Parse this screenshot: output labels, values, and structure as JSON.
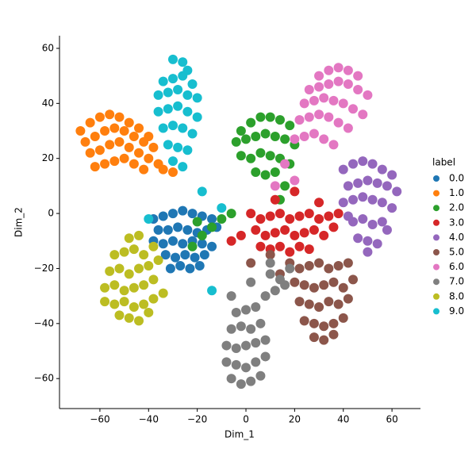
{
  "chart_data": {
    "type": "scatter",
    "x_label": "Dim_1",
    "y_label": "Dim_2",
    "legend_title": "label",
    "legend": "right",
    "xlim": [
      -76.6,
      71.7
    ],
    "ylim": [
      -70.9,
      64.6
    ],
    "xticks": [
      {
        "value": -60,
        "label": "−60"
      },
      {
        "value": -40,
        "label": "−40"
      },
      {
        "value": -20,
        "label": "−20"
      },
      0,
      20,
      40,
      60
    ],
    "yticks": [
      {
        "value": -60,
        "label": "−60"
      },
      {
        "value": -40,
        "label": "−40"
      },
      {
        "value": -20,
        "label": "−20"
      },
      0,
      20,
      40,
      60
    ],
    "series": [
      {
        "name": "0.0",
        "color": "#1f77b4",
        "x": [
          -38,
          -34,
          -30,
          -26,
          -22,
          -18,
          -14,
          -36,
          -32,
          -28,
          -24,
          -20,
          -16,
          -12,
          -38,
          -34,
          -30,
          -26,
          -22,
          -18,
          -14,
          -33,
          -29,
          -25,
          -21,
          -17,
          -31,
          -27,
          -23,
          -19
        ],
        "values": [
          -2,
          -1,
          0,
          1,
          0,
          -1,
          -2,
          -6,
          -6,
          -5,
          -6,
          -7,
          -6,
          -5,
          -10,
          -11,
          -10,
          -11,
          -10,
          -11,
          -12,
          -15,
          -16,
          -15,
          -16,
          -15,
          -20,
          -19,
          -20,
          -19
        ]
      },
      {
        "name": "1.0",
        "color": "#ff7f0e",
        "x": [
          -68,
          -64,
          -60,
          -56,
          -52,
          -48,
          -44,
          -40,
          -66,
          -62,
          -58,
          -54,
          -50,
          -46,
          -42,
          -38,
          -64,
          -60,
          -56,
          -52,
          -48,
          -44,
          -40,
          -36,
          -62,
          -58,
          -54,
          -50,
          -46,
          -42,
          -34,
          -30
        ],
        "values": [
          30,
          33,
          35,
          36,
          35,
          33,
          31,
          28,
          26,
          28,
          30,
          31,
          30,
          28,
          26,
          24,
          22,
          23,
          25,
          26,
          24,
          22,
          20,
          18,
          17,
          18,
          19,
          20,
          18,
          16,
          16,
          15
        ]
      },
      {
        "name": "2.0",
        "color": "#2ca02c",
        "x": [
          -2,
          2,
          6,
          10,
          14,
          18,
          -4,
          0,
          4,
          8,
          12,
          16,
          20,
          -2,
          2,
          6,
          10,
          14,
          18,
          4,
          8,
          12,
          -14,
          -18,
          -10,
          -20,
          -6,
          16,
          -22,
          14
        ],
        "values": [
          30,
          33,
          35,
          35,
          34,
          32,
          26,
          27,
          28,
          29,
          28,
          27,
          25,
          21,
          20,
          22,
          21,
          20,
          18,
          15,
          14,
          15,
          -5,
          -8,
          -2,
          -3,
          0,
          10,
          -12,
          5
        ]
      },
      {
        "name": "3.0",
        "color": "#d62728",
        "x": [
          2,
          6,
          10,
          14,
          18,
          22,
          26,
          30,
          34,
          38,
          4,
          8,
          12,
          16,
          20,
          24,
          28,
          32,
          36,
          6,
          10,
          14,
          18,
          22,
          26,
          30,
          -2,
          -6,
          12,
          20
        ],
        "values": [
          0,
          -2,
          -1,
          0,
          -2,
          -1,
          0,
          -2,
          -1,
          0,
          -6,
          -8,
          -7,
          -6,
          -8,
          -7,
          -6,
          -8,
          -5,
          -12,
          -13,
          -12,
          -14,
          -12,
          -13,
          4,
          -8,
          -10,
          5,
          8
        ]
      },
      {
        "name": "4.0",
        "color": "#9467bd",
        "x": [
          40,
          44,
          48,
          52,
          56,
          60,
          42,
          46,
          50,
          54,
          58,
          62,
          40,
          44,
          48,
          52,
          56,
          60,
          44,
          48,
          52,
          56,
          46,
          50,
          54,
          42,
          58,
          50
        ],
        "values": [
          16,
          18,
          19,
          18,
          16,
          14,
          10,
          11,
          12,
          11,
          10,
          8,
          4,
          5,
          6,
          5,
          4,
          2,
          -3,
          -2,
          -4,
          -3,
          -9,
          -10,
          -11,
          -1,
          -6,
          -14
        ]
      },
      {
        "name": "5.0",
        "color": "#8c564b",
        "x": [
          18,
          22,
          26,
          30,
          34,
          38,
          42,
          20,
          24,
          28,
          32,
          36,
          40,
          44,
          22,
          26,
          30,
          34,
          38,
          42,
          24,
          28,
          32,
          36,
          40,
          28,
          32,
          36,
          10,
          2,
          14
        ],
        "values": [
          -18,
          -20,
          -19,
          -18,
          -20,
          -19,
          -18,
          -25,
          -26,
          -27,
          -26,
          -25,
          -27,
          -24,
          -32,
          -33,
          -34,
          -32,
          -33,
          -31,
          -39,
          -40,
          -41,
          -40,
          -38,
          -45,
          -46,
          -44,
          -15,
          -18,
          -22
        ]
      },
      {
        "name": "6.0",
        "color": "#e377c2",
        "x": [
          30,
          34,
          38,
          42,
          46,
          26,
          30,
          34,
          38,
          42,
          46,
          50,
          24,
          28,
          32,
          36,
          40,
          44,
          48,
          22,
          26,
          30,
          34,
          38,
          42,
          20,
          24,
          28,
          32,
          36,
          16,
          12,
          20
        ],
        "values": [
          50,
          52,
          53,
          52,
          50,
          45,
          46,
          47,
          48,
          47,
          45,
          43,
          40,
          41,
          42,
          41,
          40,
          38,
          36,
          34,
          35,
          36,
          35,
          33,
          31,
          27,
          28,
          29,
          27,
          25,
          18,
          10,
          12
        ]
      },
      {
        "name": "7.0",
        "color": "#7f7f7f",
        "x": [
          -6,
          -2,
          2,
          6,
          -8,
          -4,
          0,
          4,
          8,
          -8,
          -4,
          0,
          4,
          8,
          -6,
          -2,
          2,
          6,
          -4,
          0,
          4,
          8,
          12,
          16,
          10,
          14,
          18,
          -6,
          2,
          10
        ],
        "values": [
          -60,
          -62,
          -61,
          -59,
          -54,
          -55,
          -56,
          -54,
          -52,
          -48,
          -49,
          -48,
          -47,
          -46,
          -42,
          -41,
          -42,
          -40,
          -36,
          -35,
          -34,
          -30,
          -28,
          -26,
          -22,
          -24,
          -20,
          -30,
          -25,
          -18
        ]
      },
      {
        "name": "8.0",
        "color": "#bcbd22",
        "x": [
          -58,
          -54,
          -50,
          -46,
          -42,
          -38,
          -56,
          -52,
          -48,
          -44,
          -40,
          -36,
          -58,
          -54,
          -50,
          -46,
          -42,
          -38,
          -34,
          -54,
          -50,
          -46,
          -42,
          -38,
          -52,
          -48,
          -44,
          -40,
          -48,
          -44
        ],
        "values": [
          -27,
          -26,
          -28,
          -27,
          -26,
          -24,
          -21,
          -20,
          -22,
          -20,
          -19,
          -17,
          -32,
          -33,
          -32,
          -34,
          -33,
          -31,
          -29,
          -15,
          -14,
          -13,
          -15,
          -12,
          -37,
          -38,
          -39,
          -36,
          -9,
          -8
        ]
      },
      {
        "name": "9.0",
        "color": "#17becf",
        "x": [
          -30,
          -26,
          -24,
          -34,
          -30,
          -26,
          -22,
          -36,
          -32,
          -28,
          -24,
          -20,
          -36,
          -32,
          -28,
          -24,
          -20,
          -34,
          -30,
          -26,
          -22,
          -32,
          -28,
          -24,
          -30,
          -26,
          -18,
          -10,
          -40,
          -14
        ],
        "values": [
          56,
          55,
          52,
          48,
          49,
          50,
          47,
          43,
          44,
          45,
          43,
          42,
          37,
          38,
          39,
          37,
          35,
          31,
          32,
          31,
          29,
          25,
          24,
          23,
          19,
          17,
          8,
          2,
          -2,
          -28
        ]
      }
    ]
  }
}
